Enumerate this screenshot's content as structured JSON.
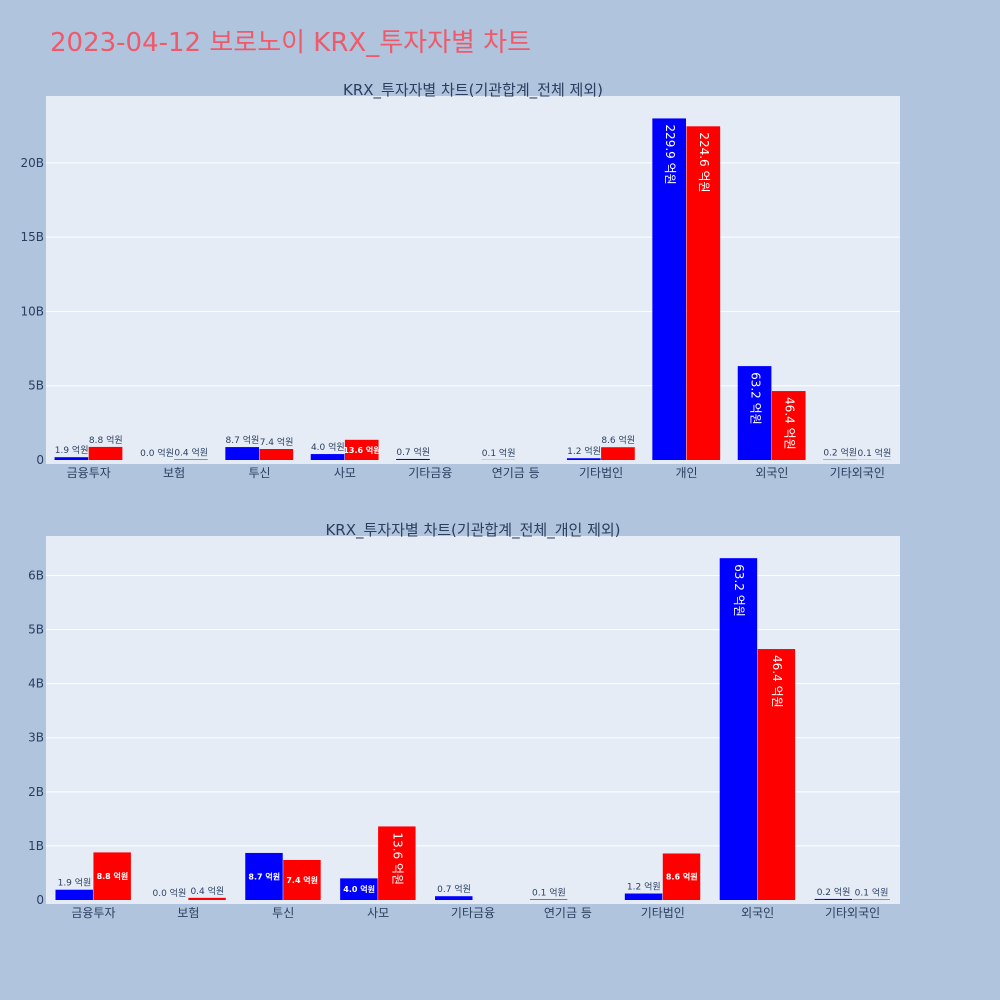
{
  "page": {
    "title": "2023-04-12 보로노이 KRX_투자자별 차트"
  },
  "colors": {
    "sell": "#0000ff",
    "buy": "#ff0000",
    "plot_bg": "#e5ecf6",
    "page_bg": "#b0c4de",
    "grid": "#ffffff",
    "title": "#ef5a6a"
  },
  "chart_data": [
    {
      "type": "bar",
      "title": "KRX_투자자별 차트(기관합계_전체 제외)",
      "categories": [
        "금융투자",
        "보험",
        "투신",
        "사모",
        "기타금융",
        "연기금 등",
        "기타법인",
        "개인",
        "외국인",
        "기타외국인"
      ],
      "series": [
        {
          "color": "#0000ff",
          "values": [
            190000000,
            0,
            870000000,
            400000000,
            70000000,
            10000000,
            120000000,
            22990000000,
            6320000000,
            20000000
          ],
          "labels": [
            "1.9 억원",
            "0.0 억원",
            "8.7 억원",
            "4.0 억원",
            "0.7 억원",
            "0.1 억원",
            "1.2 억원",
            "229.9 억원",
            "63.2 억원",
            "0.2 억원"
          ]
        },
        {
          "color": "#ff0000",
          "values": [
            880000000,
            40000000,
            740000000,
            1360000000,
            0,
            0,
            860000000,
            22460000000,
            4640000000,
            10000000
          ],
          "labels": [
            "8.8 억원",
            "0.4 억원",
            "7.4 억원",
            "13.6 억원",
            "",
            "",
            "8.6 억원",
            "224.6 억원",
            "46.4 억원",
            "0.1 억원"
          ]
        }
      ],
      "ylim": [
        0,
        24500000000
      ],
      "yticks": [
        0,
        5000000000,
        10000000000,
        15000000000,
        20000000000
      ],
      "ytick_labels": [
        "0",
        "5B",
        "10B",
        "15B",
        "20B"
      ],
      "grid": true,
      "legend": "none"
    },
    {
      "type": "bar",
      "title": "KRX_투자자별 차트(기관합계_전체_개인 제외)",
      "categories": [
        "금융투자",
        "보험",
        "투신",
        "사모",
        "기타금융",
        "연기금 등",
        "기타법인",
        "외국인",
        "기타외국인"
      ],
      "series": [
        {
          "color": "#0000ff",
          "values": [
            190000000,
            0,
            870000000,
            400000000,
            70000000,
            10000000,
            120000000,
            6320000000,
            20000000
          ],
          "labels": [
            "1.9 억원",
            "0.0 억원",
            "8.7 억원",
            "4.0 억원",
            "0.7 억원",
            "0.1 억원",
            "1.2 억원",
            "63.2 억원",
            "0.2 억원"
          ]
        },
        {
          "color": "#ff0000",
          "values": [
            880000000,
            40000000,
            740000000,
            1360000000,
            0,
            0,
            860000000,
            4640000000,
            10000000
          ],
          "labels": [
            "8.8 억원",
            "0.4 억원",
            "7.4 억원",
            "13.6 억원",
            "",
            "",
            "8.6 억원",
            "46.4 억원",
            "0.1 억원"
          ]
        }
      ],
      "ylim": [
        0,
        6730000000
      ],
      "yticks": [
        0,
        1000000000,
        2000000000,
        3000000000,
        4000000000,
        5000000000,
        6000000000
      ],
      "ytick_labels": [
        "0",
        "1B",
        "2B",
        "3B",
        "4B",
        "5B",
        "6B"
      ],
      "grid": true,
      "legend": "none"
    }
  ]
}
